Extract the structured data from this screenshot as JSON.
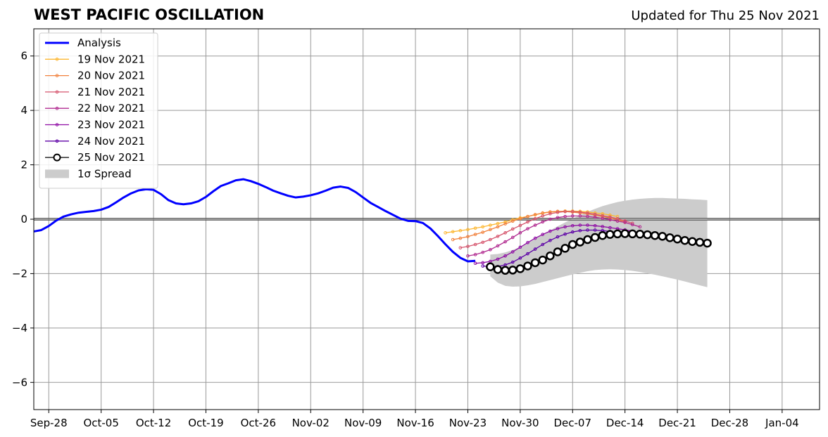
{
  "title": "WEST PACIFIC OSCILLATION",
  "updated": "Updated for Thu 25 Nov 2021",
  "chart_data": {
    "type": "line",
    "title": "WEST PACIFIC OSCILLATION",
    "xlabel": "",
    "ylabel": "",
    "xlim": [
      "2021-09-26",
      "2022-01-09"
    ],
    "ylim": [
      -7,
      7
    ],
    "grid": true,
    "legend_position": "top-left",
    "x_ticks": [
      "Sep-28",
      "Oct-05",
      "Oct-12",
      "Oct-19",
      "Oct-26",
      "Nov-02",
      "Nov-09",
      "Nov-16",
      "Nov-23",
      "Nov-30",
      "Dec-07",
      "Dec-14",
      "Dec-21",
      "Dec-28",
      "Jan-04"
    ],
    "x_tick_dates": [
      "2021-09-28",
      "2021-10-05",
      "2021-10-12",
      "2021-10-19",
      "2021-10-26",
      "2021-11-02",
      "2021-11-09",
      "2021-11-16",
      "2021-11-23",
      "2021-11-30",
      "2021-12-07",
      "2021-12-14",
      "2021-12-21",
      "2021-12-28",
      "2022-01-04"
    ],
    "y_ticks": [
      "6",
      "4",
      "2",
      "0",
      "−2",
      "−4",
      "−6"
    ],
    "y_tick_values": [
      6,
      4,
      2,
      0,
      -2,
      -4,
      -6
    ],
    "analysis": {
      "name": "Analysis",
      "color": "#0000ff",
      "start": "2021-09-26",
      "values": [
        -0.45,
        -0.4,
        -0.25,
        -0.05,
        0.1,
        0.18,
        0.24,
        0.27,
        0.3,
        0.35,
        0.45,
        0.62,
        0.8,
        0.95,
        1.06,
        1.1,
        1.08,
        0.92,
        0.7,
        0.58,
        0.55,
        0.58,
        0.66,
        0.82,
        1.03,
        1.22,
        1.32,
        1.43,
        1.47,
        1.4,
        1.3,
        1.18,
        1.05,
        0.95,
        0.86,
        0.8,
        0.83,
        0.88,
        0.95,
        1.05,
        1.16,
        1.2,
        1.15,
        1.0,
        0.8,
        0.6,
        0.45,
        0.3,
        0.16,
        0.02,
        -0.06,
        -0.07,
        -0.14,
        -0.34,
        -0.62,
        -0.92,
        -1.2,
        -1.42,
        -1.55,
        -1.53
      ]
    },
    "forecasts": [
      {
        "name": "19 Nov 2021",
        "color": "#fcb731",
        "start": "2021-11-20",
        "values": [
          -0.5,
          -0.46,
          -0.42,
          -0.38,
          -0.33,
          -0.28,
          -0.22,
          -0.16,
          -0.1,
          -0.02,
          0.05,
          0.1,
          0.16,
          0.22,
          0.26,
          0.28,
          0.3,
          0.3,
          0.29,
          0.27,
          0.23,
          0.2,
          0.15,
          0.1
        ]
      },
      {
        "name": "20 Nov 2021",
        "color": "#f1813d",
        "start": "2021-11-21",
        "values": [
          -0.75,
          -0.7,
          -0.64,
          -0.56,
          -0.48,
          -0.38,
          -0.28,
          -0.17,
          -0.07,
          0.02,
          0.1,
          0.17,
          0.23,
          0.27,
          0.29,
          0.28,
          0.26,
          0.23,
          0.2,
          0.15,
          0.1,
          0.05,
          -0.02,
          -0.1
        ]
      },
      {
        "name": "21 Nov 2021",
        "color": "#d6556d",
        "start": "2021-11-22",
        "values": [
          -1.05,
          -1.0,
          -0.93,
          -0.85,
          -0.75,
          -0.63,
          -0.5,
          -0.36,
          -0.23,
          -0.1,
          0.02,
          0.12,
          0.2,
          0.25,
          0.28,
          0.28,
          0.26,
          0.23,
          0.18,
          0.13,
          0.08,
          0.02,
          -0.06,
          -0.15
        ]
      },
      {
        "name": "22 Nov 2021",
        "color": "#b12a90",
        "start": "2021-11-23",
        "values": [
          -1.35,
          -1.3,
          -1.22,
          -1.12,
          -0.98,
          -0.83,
          -0.67,
          -0.5,
          -0.35,
          -0.22,
          -0.1,
          0.0,
          0.06,
          0.1,
          0.12,
          0.12,
          0.1,
          0.07,
          0.03,
          -0.02,
          -0.07,
          -0.12,
          -0.2,
          -0.28
        ]
      },
      {
        "name": "23 Nov 2021",
        "color": "#8f0da4",
        "start": "2021-11-24",
        "values": [
          -1.62,
          -1.6,
          -1.55,
          -1.47,
          -1.35,
          -1.2,
          -1.03,
          -0.86,
          -0.7,
          -0.56,
          -0.44,
          -0.35,
          -0.28,
          -0.24,
          -0.22,
          -0.22,
          -0.24,
          -0.27,
          -0.31,
          -0.35,
          -0.39,
          -0.44,
          -0.5
        ]
      },
      {
        "name": "24 Nov 2021",
        "color": "#5d01a6",
        "start": "2021-11-25",
        "values": [
          -1.72,
          -1.75,
          -1.74,
          -1.68,
          -1.58,
          -1.43,
          -1.27,
          -1.1,
          -0.93,
          -0.78,
          -0.65,
          -0.55,
          -0.47,
          -0.42,
          -0.4,
          -0.4,
          -0.42,
          -0.45,
          -0.49,
          -0.53,
          -0.58,
          -0.63
        ]
      },
      {
        "name": "25 Nov 2021",
        "color": "#000000",
        "start": "2021-11-26",
        "values": [
          -1.75,
          -1.85,
          -1.88,
          -1.87,
          -1.82,
          -1.72,
          -1.6,
          -1.5,
          -1.35,
          -1.2,
          -1.07,
          -0.93,
          -0.84,
          -0.75,
          -0.67,
          -0.6,
          -0.56,
          -0.54,
          -0.53,
          -0.54,
          -0.55,
          -0.57,
          -0.6,
          -0.63,
          -0.68,
          -0.73,
          -0.78,
          -0.82,
          -0.85,
          -0.88
        ]
      }
    ],
    "spread": {
      "name": "1σ Spread",
      "color": "#cccccc",
      "start": "2021-11-26",
      "upper": [
        -1.3,
        -1.28,
        -1.22,
        -1.13,
        -1.02,
        -0.88,
        -0.73,
        -0.57,
        -0.41,
        -0.26,
        -0.12,
        0.02,
        0.15,
        0.27,
        0.38,
        0.48,
        0.56,
        0.63,
        0.68,
        0.72,
        0.75,
        0.77,
        0.78,
        0.78,
        0.77,
        0.76,
        0.75,
        0.73,
        0.72,
        0.7
      ],
      "lower": [
        -2.1,
        -2.33,
        -2.45,
        -2.48,
        -2.47,
        -2.43,
        -2.38,
        -2.31,
        -2.24,
        -2.17,
        -2.1,
        -2.03,
        -1.97,
        -1.91,
        -1.87,
        -1.85,
        -1.84,
        -1.85,
        -1.87,
        -1.9,
        -1.94,
        -1.99,
        -2.04,
        -2.1,
        -2.16,
        -2.22,
        -2.29,
        -2.36,
        -2.43,
        -2.5
      ]
    }
  }
}
